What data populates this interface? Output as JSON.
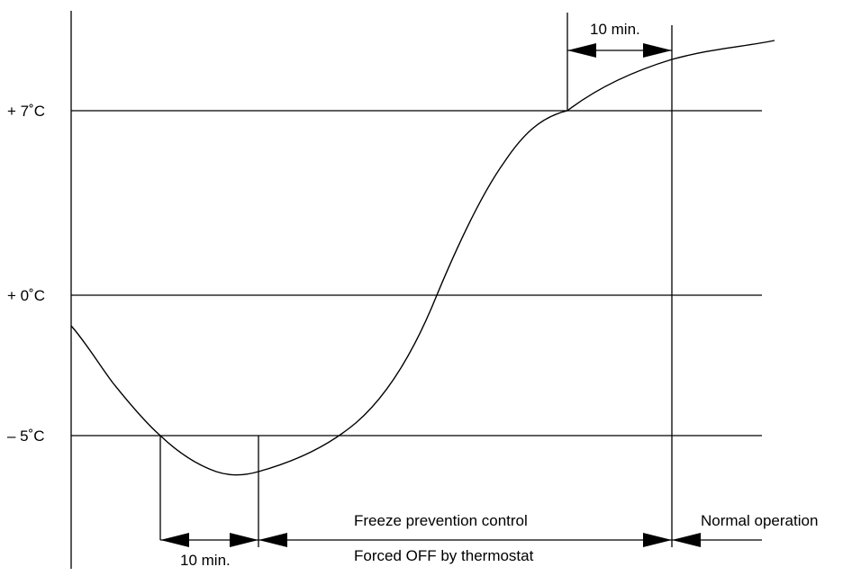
{
  "thresholds": {
    "upper": "+ 7˚C",
    "zero": "+ 0˚C",
    "lower": "– 5˚C"
  },
  "intervals": {
    "delay_end": "10 min.",
    "delay_start": "10 min."
  },
  "phases": {
    "freeze_prevention": "Freeze prevention control",
    "forced_off": "Forced OFF by thermostat",
    "normal": "Normal operation"
  }
}
